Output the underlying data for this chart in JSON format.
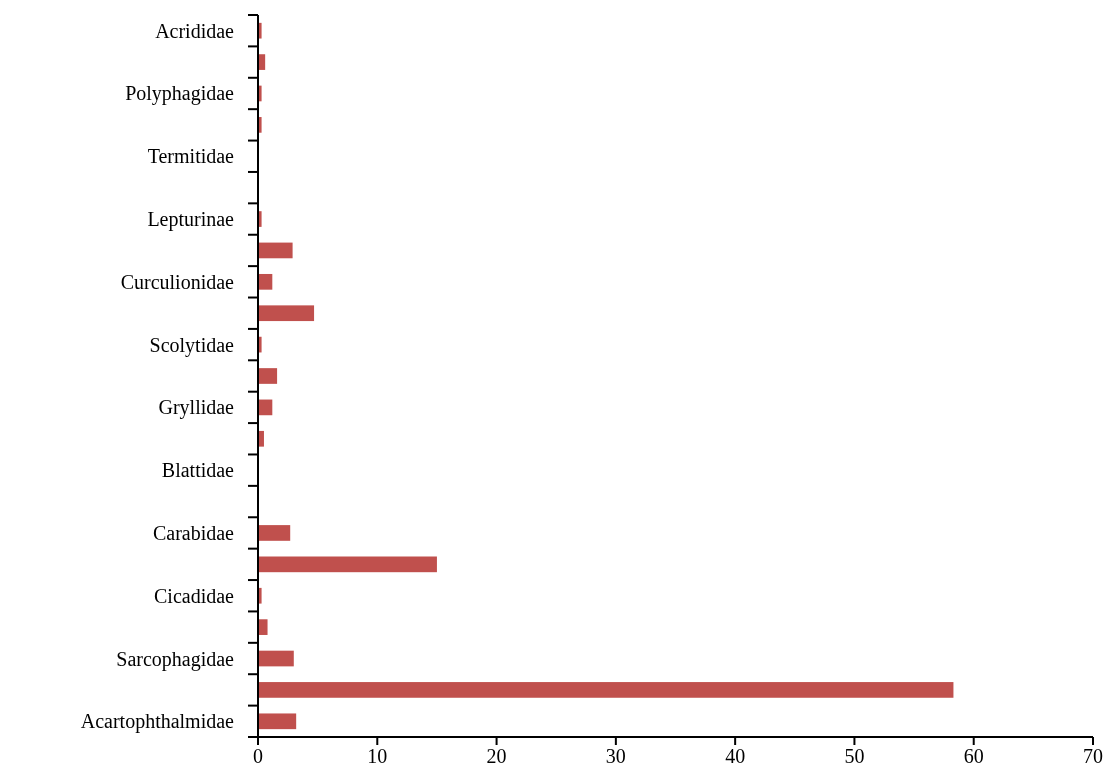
{
  "chart_data": {
    "type": "bar",
    "orientation": "horizontal",
    "categories": [
      "Acrididae",
      null,
      "Polyphagidae",
      null,
      "Termitidae",
      null,
      "Lepturinae",
      null,
      "Curculionidae",
      null,
      "Scolytidae",
      null,
      "Gryllidae",
      null,
      "Blattidae",
      null,
      "Carabidae",
      null,
      "Cicadidae",
      null,
      "Sarcophagidae",
      null,
      "Acartophthalmidae"
    ],
    "values": [
      0.3,
      0.6,
      0.3,
      0.3,
      0,
      0,
      0.3,
      2.9,
      1.2,
      4.7,
      0.3,
      1.6,
      1.2,
      0.5,
      0,
      0,
      2.7,
      15.0,
      0.3,
      0.8,
      3.0,
      58.3,
      3.2
    ],
    "color": "#c0504d",
    "xlim": [
      0,
      70
    ],
    "xticks": [
      0,
      10,
      20,
      30,
      40,
      50,
      60,
      70
    ],
    "grid": false
  }
}
